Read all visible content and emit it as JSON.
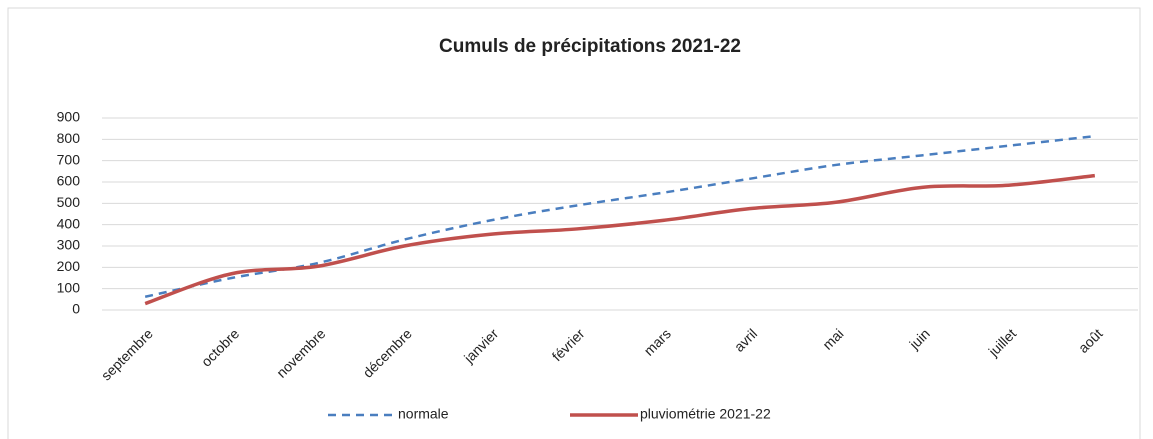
{
  "chart_data": {
    "type": "line",
    "title": "Cumuls de précipitations 2021-22",
    "categories": [
      "septembre",
      "octobre",
      "novembre",
      "décembre",
      "janvier",
      "février",
      "mars",
      "avril",
      "mai",
      "juin",
      "juillet",
      "août"
    ],
    "series": [
      {
        "name": "normale",
        "color": "#4a7ebf",
        "dashed": true,
        "values": [
          62,
          150,
          220,
          330,
          420,
          490,
          550,
          615,
          680,
          725,
          770,
          815
        ]
      },
      {
        "name": "pluviométrie 2021-22",
        "color": "#c0504d",
        "dashed": false,
        "values": [
          30,
          170,
          205,
          300,
          355,
          380,
          420,
          475,
          505,
          575,
          585,
          630
        ]
      }
    ],
    "ylim": [
      0,
      900
    ],
    "yticks": [
      0,
      100,
      200,
      300,
      400,
      500,
      600,
      700,
      800,
      900
    ],
    "grid": true
  }
}
